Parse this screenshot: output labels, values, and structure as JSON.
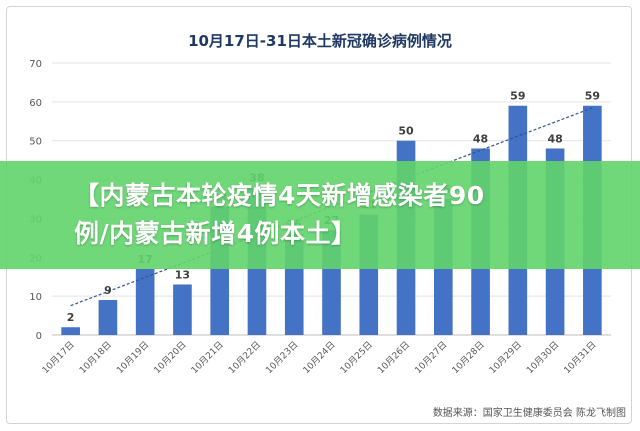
{
  "banner": {
    "line1": "【内蒙古本轮疫情4天新增感染者90",
    "line2": "例/内蒙古新增4例本土】"
  },
  "source_note": "数据来源：国家卫生健康委员会    陈龙飞制图",
  "colors": {
    "bar": "#4472c4",
    "trendline": "#2f5597",
    "title": "#1f3864",
    "banner": "#62d46c"
  },
  "chart_data": {
    "type": "bar",
    "title": "10月17日-31日本土新冠确诊病例情况",
    "categories": [
      "10月17日",
      "10月18日",
      "10月19日",
      "10月20日",
      "10月21日",
      "10月22日",
      "10月23日",
      "10月24日",
      "10月25日",
      "10月26日",
      "10月27日",
      "10月28日",
      "10月29日",
      "10月30日",
      "10月31日"
    ],
    "series": [
      {
        "values": [
          2,
          9,
          17,
          13,
          33,
          38,
          26,
          27,
          31,
          50,
          35,
          48,
          59,
          48,
          59
        ]
      }
    ],
    "trendline": "linear",
    "ylim": [
      0,
      70
    ],
    "yticks": [
      0,
      10,
      20,
      30,
      40,
      50,
      60,
      70
    ],
    "grid": true,
    "xlabel": "",
    "ylabel": ""
  }
}
